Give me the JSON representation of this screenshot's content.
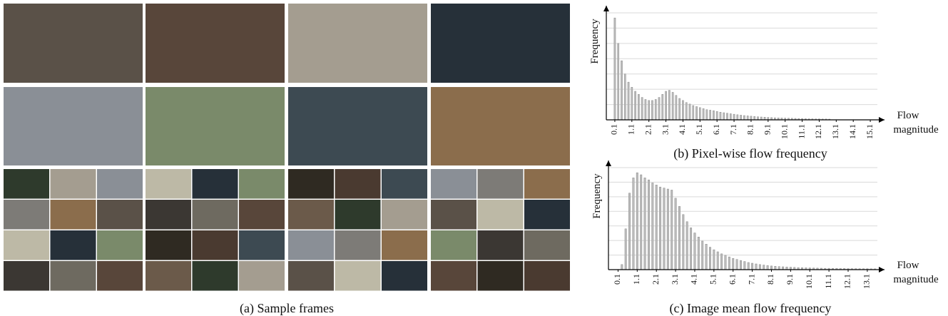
{
  "caption": "(a) Sample frames",
  "chart_data": [
    {
      "type": "histogram",
      "title": "(b) Pixel-wise flow frequency",
      "ylabel": "Frequency",
      "xlabel": [
        "Flow",
        "magnitude"
      ],
      "bins": [
        0,
        0.2,
        0.4,
        0.6,
        0.8,
        1,
        1.2,
        1.4,
        1.6,
        1.8,
        2,
        2.2,
        2.4,
        2.6,
        2.8,
        3,
        3.2,
        3.4,
        3.6,
        3.8,
        4,
        4.2,
        4.4,
        4.6,
        4.8,
        5,
        5.2,
        5.4,
        5.6,
        5.8,
        6,
        6.2,
        6.4,
        6.6,
        6.8,
        7,
        7.2,
        7.4,
        7.6,
        7.8,
        8,
        8.2,
        8.4,
        8.6,
        8.8,
        9,
        9.2,
        9.4,
        9.6,
        9.8,
        10,
        10.2,
        10.4,
        10.6,
        10.8,
        11,
        11.2,
        11.4,
        11.6,
        11.8,
        12,
        12.2,
        12.4,
        12.6,
        12.8
      ],
      "values": [
        100,
        75,
        58,
        45,
        37,
        32,
        28,
        25,
        22,
        20,
        19,
        19,
        20,
        22,
        25,
        28,
        29,
        27,
        24,
        21,
        19,
        17,
        15.5,
        14,
        13,
        12,
        11,
        10,
        9.5,
        9,
        8.2,
        7.5,
        7,
        6.5,
        6,
        5.5,
        5,
        4.6,
        4.2,
        3.9,
        3.6,
        3.3,
        3,
        2.8,
        2.6,
        2.4,
        2.2,
        2,
        1.9,
        1.8,
        1.7,
        1.6,
        1.5,
        1.4,
        1.3,
        1.2,
        1.1,
        1,
        1,
        0.9,
        0.9,
        0.8,
        0.8,
        0.7
      ],
      "color": "#bdbdbd",
      "grid": true,
      "xlim": [
        -0.4,
        15.6
      ],
      "ylim": [
        0,
        105
      ],
      "xticks": [
        0.1,
        1.1,
        2.1,
        3.1,
        4.1,
        5.1,
        6.1,
        7.1,
        8.1,
        9.1,
        10.1,
        11.1,
        12.1,
        13.1,
        14.1,
        15.1
      ]
    },
    {
      "type": "histogram",
      "title": "(c) Image mean flow frequency",
      "ylabel": "Frequency",
      "xlabel": [
        "Flow",
        "magnitude"
      ],
      "bins": [
        0.2,
        0.4,
        0.6,
        0.8,
        1,
        1.2,
        1.4,
        1.6,
        1.8,
        2,
        2.2,
        2.4,
        2.6,
        2.8,
        3,
        3.2,
        3.4,
        3.6,
        3.8,
        4,
        4.2,
        4.4,
        4.6,
        4.8,
        5,
        5.2,
        5.4,
        5.6,
        5.8,
        6,
        6.2,
        6.4,
        6.6,
        6.8,
        7,
        7.2,
        7.4,
        7.6,
        7.8,
        8,
        8.2,
        8.4,
        8.6,
        8.8,
        9,
        9.2,
        9.4,
        9.6,
        9.8,
        10,
        10.2,
        10.4,
        10.6,
        10.8,
        11,
        11.2,
        11.4,
        11.6,
        11.8,
        12,
        12.2,
        12.4,
        12.6,
        12.8,
        13,
        13.2,
        13.4,
        13.6
      ],
      "values": [
        5,
        40,
        75,
        90,
        95,
        93,
        90,
        88,
        85,
        83,
        81,
        80,
        79,
        78,
        70,
        62,
        54,
        47,
        41,
        36,
        32,
        28,
        25,
        22,
        19.5,
        17.5,
        15.5,
        14,
        12.5,
        11,
        10,
        9,
        8,
        7,
        6.3,
        5.6,
        5,
        4.5,
        4,
        3.6,
        3.3,
        3,
        2.8,
        2.6,
        2.4,
        2.2,
        2,
        1.9,
        1.8,
        1.7,
        1.6,
        1.5,
        1.4,
        1.3,
        1.3,
        1.2,
        1.2,
        1.1,
        1.1,
        1,
        1,
        1,
        0.9,
        0.9,
        0.9,
        0.8,
        0.8
      ],
      "color": "#bdbdbd",
      "grid": true,
      "xlim": [
        -0.4,
        13.7
      ],
      "ylim": [
        0,
        100
      ],
      "xticks": [
        0.1,
        1.1,
        2.1,
        3.1,
        4.1,
        5.1,
        6.1,
        7.1,
        8.1,
        9.1,
        10.1,
        11.1,
        12.1,
        13.1
      ]
    }
  ]
}
